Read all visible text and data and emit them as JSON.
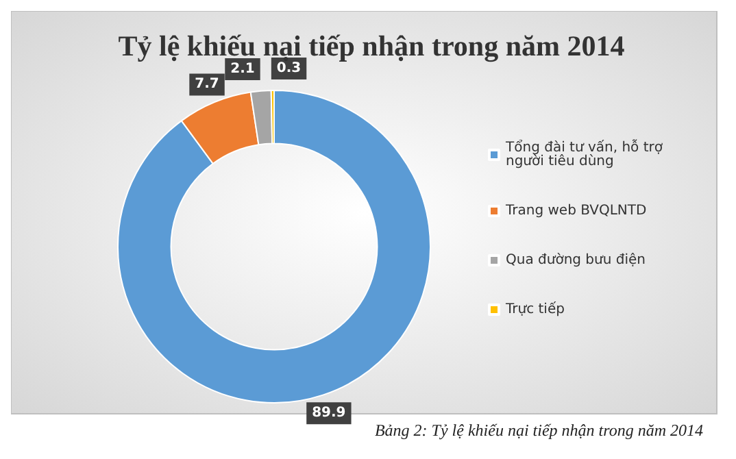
{
  "chart_data": {
    "type": "donut",
    "title": "Tỷ lệ khiếu nại tiếp nhận trong năm 2014",
    "categories": [
      "Tổng đài tư vấn, hỗ trợ người tiêu dùng",
      "Trang web BVQLNTD",
      "Qua đường bưu điện",
      "Trực tiếp"
    ],
    "values": [
      89.9,
      7.7,
      2.1,
      0.3
    ],
    "colors": [
      "#5b9bd5",
      "#ed7d31",
      "#a5a5a5",
      "#ffc000"
    ],
    "data_labels": true,
    "legend": "right",
    "annotations": [
      "Bảng 2: Tỷ lệ khiếu nại tiếp nhận trong năm 2014"
    ]
  }
}
